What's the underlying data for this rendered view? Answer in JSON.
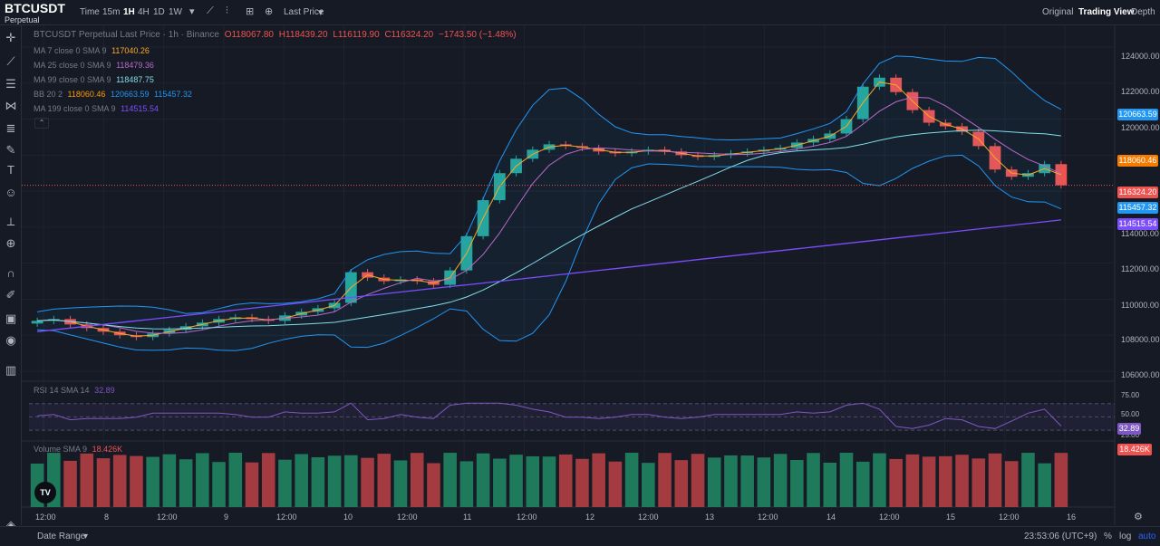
{
  "header": {
    "symbol": "BTCUSDT",
    "sub": "Perpetual",
    "time_label": "Time",
    "intervals": [
      "15m",
      "1H",
      "4H",
      "1D",
      "1W"
    ],
    "active_interval": "1H",
    "price_type": "Last Price",
    "views": [
      "Original",
      "Trading View",
      "Depth"
    ],
    "active_view": "Trading View"
  },
  "legend": {
    "title": "BTCUSDT Perpetual Last Price · 1h · Binance",
    "o": "O118067.80",
    "h": "H118439.20",
    "l": "L116119.90",
    "c": "C116324.20",
    "change": "−1743.50 (−1.48%)",
    "ma7_label": "MA 7 close 0 SMA 9",
    "ma7_val": "117040.26",
    "ma25_label": "MA 25 close 0 SMA 9",
    "ma25_val": "118479.36",
    "ma99_label": "MA 99 close 0 SMA 9",
    "ma99_val": "118487.75",
    "bb_label": "BB 20 2",
    "bb_mid": "118060.46",
    "bb_up": "120663.59",
    "bb_low": "115457.32",
    "ma199_label": "MA 199 close 0 SMA 9",
    "ma199_val": "114515.54"
  },
  "price_axis": [
    "124000.00",
    "122000.00",
    "120000.00",
    "114000.00",
    "112000.00",
    "110000.00",
    "108000.00",
    "106000.00"
  ],
  "price_tags": {
    "bb_up": "120663.59",
    "bb_mid": "118060.46",
    "last": "116324.20",
    "bb_low": "115457.32",
    "ma199": "114515.54"
  },
  "rsi": {
    "label": "RSI 14 SMA 14",
    "value": "32.89",
    "levels": [
      "75.00",
      "50.00",
      "25.00"
    ],
    "tag": "32.89"
  },
  "volume": {
    "label": "Volume SMA 9",
    "value": "18.426K",
    "tag": "18.426K"
  },
  "time_axis": [
    "12:00",
    "8",
    "12:00",
    "9",
    "12:00",
    "10",
    "12:00",
    "11",
    "12:00",
    "12",
    "12:00",
    "13",
    "12:00",
    "14",
    "12:00",
    "15",
    "12:00",
    "16"
  ],
  "footer": {
    "date_range": "Date Range",
    "clock": "23:53:06 (UTC+9)",
    "pct": "%",
    "log": "log",
    "auto": "auto"
  },
  "colors": {
    "up": "#26a69a",
    "down": "#ef5350",
    "ma7": "#f9a825",
    "ma25": "#ba68c8",
    "ma99": "#80deea",
    "bb": "#2196f3",
    "ma199": "#7c4dff",
    "rsi": "#7e57c2"
  },
  "chart_data": {
    "type": "candlestick",
    "title": "BTCUSDT Perpetual Last Price · 1h · Binance",
    "ylim": [
      105500,
      124500
    ],
    "x_ticks": [
      "12:00",
      "8",
      "12:00",
      "9",
      "12:00",
      "10",
      "12:00",
      "11",
      "12:00",
      "12",
      "12:00",
      "13",
      "12:00",
      "14",
      "12:00",
      "15",
      "12:00",
      "16"
    ],
    "close_series": [
      108800,
      108900,
      108600,
      108400,
      108200,
      108000,
      107900,
      108100,
      108300,
      108500,
      108700,
      108900,
      109000,
      108900,
      108800,
      109100,
      109300,
      109500,
      109800,
      111500,
      111200,
      111000,
      111100,
      111000,
      110800,
      111600,
      113500,
      115500,
      117000,
      117800,
      118300,
      118600,
      118500,
      118400,
      118200,
      118100,
      118200,
      118300,
      118200,
      118000,
      117900,
      118000,
      118100,
      118200,
      118300,
      118400,
      118700,
      118900,
      119200,
      120000,
      121800,
      122300,
      121500,
      120500,
      119800,
      119600,
      119300,
      118500,
      117200,
      116800,
      117000,
      117500,
      116324
    ],
    "series": [
      {
        "name": "MA 7",
        "last": 117040.26
      },
      {
        "name": "MA 25",
        "last": 118479.36
      },
      {
        "name": "MA 99",
        "last": 118487.75
      },
      {
        "name": "BB 20 2 upper",
        "last": 120663.59
      },
      {
        "name": "BB 20 2 basis",
        "last": 118060.46
      },
      {
        "name": "BB 20 2 lower",
        "last": 115457.32
      },
      {
        "name": "MA 199",
        "last": 114515.54
      }
    ],
    "rsi_last": 32.89,
    "volume_last": "18.426K"
  }
}
